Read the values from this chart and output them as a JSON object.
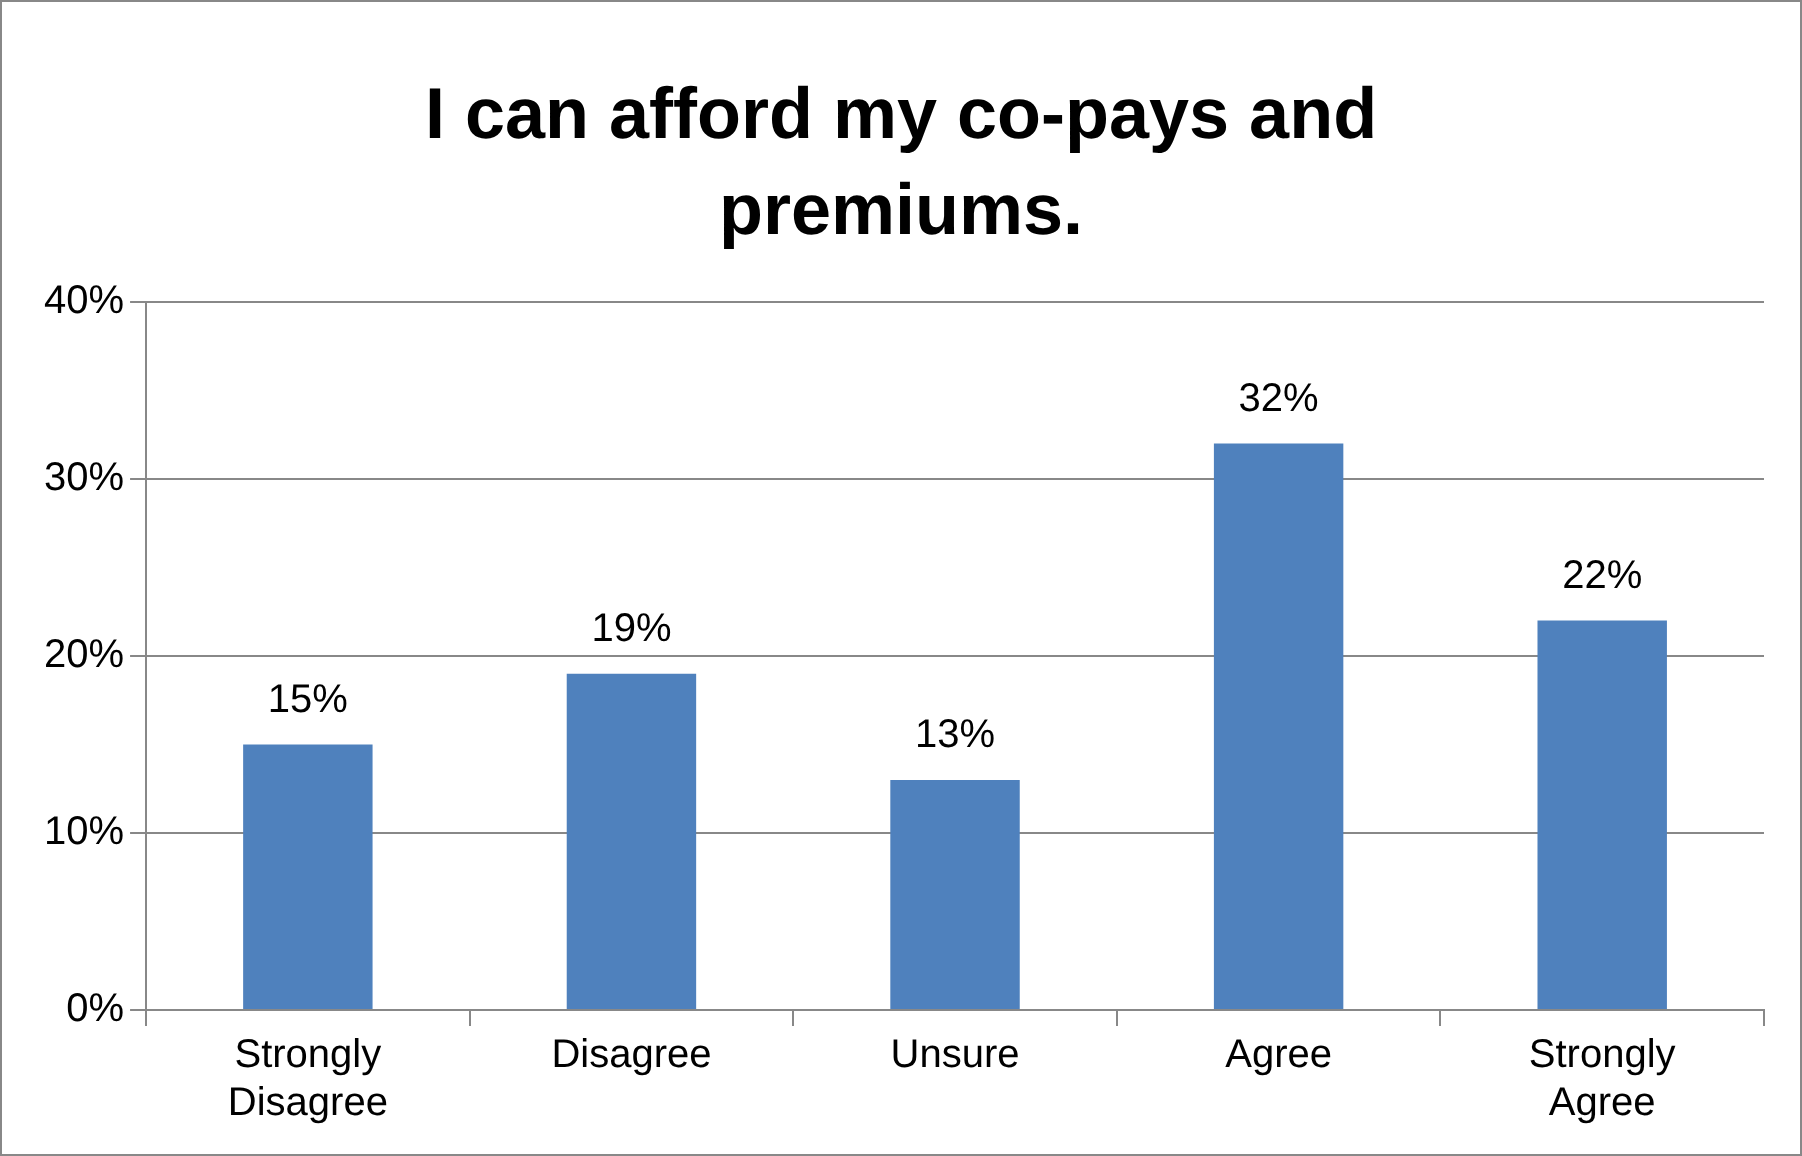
{
  "chart_data": {
    "type": "bar",
    "title": "I can afford my co-pays and premiums.",
    "categories": [
      "Strongly Disagree",
      "Disagree",
      "Unsure",
      "Agree",
      "Strongly Agree"
    ],
    "values": [
      15,
      19,
      13,
      32,
      22
    ],
    "value_labels": [
      "15%",
      "19%",
      "13%",
      "32%",
      "22%"
    ],
    "color": "#4f81bd",
    "ylim": [
      0,
      40
    ],
    "yticks": [
      {
        "value": 0,
        "label": "0%"
      },
      {
        "value": 10,
        "label": "10%"
      },
      {
        "value": 20,
        "label": "20%"
      },
      {
        "value": 30,
        "label": "30%"
      },
      {
        "value": 40,
        "label": "40%"
      }
    ],
    "grid": "y",
    "legend": false
  }
}
